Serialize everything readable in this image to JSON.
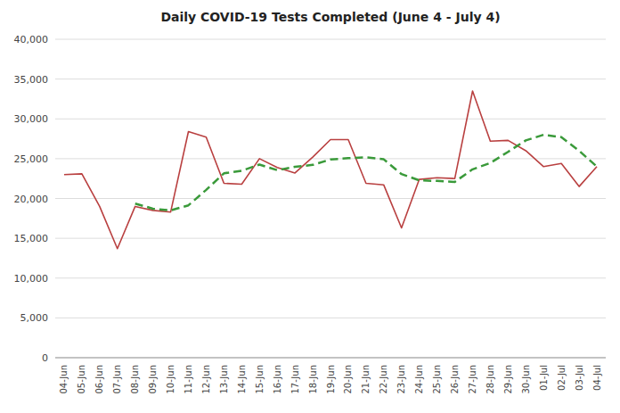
{
  "chart_data": {
    "type": "line",
    "title": "Daily COVID-19 Tests Completed (June 4 - July 4)",
    "categories": [
      "04-Jun",
      "05-Jun",
      "06-Jun",
      "07-Jun",
      "08-Jun",
      "09-Jun",
      "10-Jun",
      "11-Jun",
      "12-Jun",
      "13-Jun",
      "14-Jun",
      "15-Jun",
      "16-Jun",
      "17-Jun",
      "18-Jun",
      "19-Jun",
      "20-Jun",
      "21-Jun",
      "22-Jun",
      "23-Jun",
      "24-Jun",
      "25-Jun",
      "26-Jun",
      "27-Jun",
      "28-Jun",
      "29-Jun",
      "30-Jun",
      "01-Jul",
      "02-Jul",
      "03-Jul",
      "04-Jul"
    ],
    "series": [
      {
        "color": "#b94040",
        "line_style": "solid",
        "values": [
          23000,
          23100,
          19000,
          13700,
          19000,
          18500,
          18300,
          28400,
          27700,
          21900,
          21800,
          25000,
          23900,
          23200,
          25200,
          27400,
          27400,
          21900,
          21700,
          16300,
          22400,
          22600,
          22500,
          33500,
          27200,
          27300,
          26000,
          24000,
          24400,
          21500,
          24000
        ]
      },
      {
        "color": "#3a9a3a",
        "line_style": "dashed",
        "values": [
          null,
          null,
          null,
          null,
          19360,
          18720,
          18500,
          19140,
          21080,
          23160,
          23480,
          24260,
          23560,
          23980,
          24220,
          24900,
          25060,
          25160,
          24920,
          23060,
          22280,
          22200,
          22080,
          23660,
          24460,
          25860,
          27300,
          28000,
          27700,
          26000,
          24000
        ]
      }
    ],
    "ylim": [
      0,
      40000
    ],
    "yticks": [
      0,
      {
        "value": 5000,
        "label": "5,000"
      },
      {
        "value": 10000,
        "label": "10,000"
      },
      {
        "value": 15000,
        "label": "15,000"
      },
      {
        "value": 20000,
        "label": "20,000"
      },
      {
        "value": 25000,
        "label": "25,000"
      },
      {
        "value": 30000,
        "label": "30,000"
      },
      {
        "value": 35000,
        "label": "35,000"
      },
      {
        "value": 40000,
        "label": "40,000"
      }
    ],
    "grid": true
  }
}
